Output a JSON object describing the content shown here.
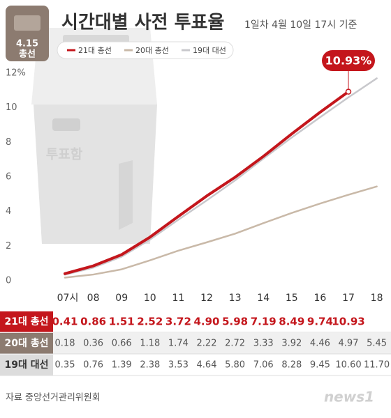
{
  "chart_data": {
    "type": "line",
    "title": "시간대별 사전 투표율",
    "subtitle": "1일차 4월 10일  17시 기준",
    "badge": [
      "4.15",
      "총선"
    ],
    "box_label": "투표함",
    "source": "자료 중앙선거관리위원회",
    "logo": "news1",
    "callout": "10.93%",
    "categories": [
      "07시",
      "08",
      "09",
      "10",
      "11",
      "12",
      "13",
      "14",
      "15",
      "16",
      "17",
      "18"
    ],
    "series": [
      {
        "name": "21대 총선",
        "color": "#c4161c",
        "values": [
          0.41,
          0.86,
          1.51,
          2.52,
          3.72,
          4.9,
          5.98,
          7.19,
          8.49,
          9.74,
          10.93,
          null
        ],
        "value_labels": [
          "0.41",
          "0.86",
          "1.51",
          "2.52",
          "3.72",
          "4.90",
          "5.98",
          "7.19",
          "8.49",
          "9.74",
          "10.93",
          null
        ]
      },
      {
        "name": "20대 총선",
        "color": "#c9b9a8",
        "values": [
          0.18,
          0.36,
          0.66,
          1.18,
          1.74,
          2.22,
          2.72,
          3.33,
          3.92,
          4.46,
          4.97,
          5.45
        ],
        "value_labels": [
          "0.18",
          "0.36",
          "0.66",
          "1.18",
          "1.74",
          "2.22",
          "2.72",
          "3.33",
          "3.92",
          "4.46",
          "4.97",
          "5.45"
        ]
      },
      {
        "name": "19대 대선",
        "color": "#c8c8cc",
        "values": [
          0.35,
          0.76,
          1.39,
          2.38,
          3.53,
          4.64,
          5.8,
          7.06,
          8.28,
          9.45,
          10.6,
          11.7
        ],
        "value_labels": [
          "0.35",
          "0.76",
          "1.39",
          "2.38",
          "3.53",
          "4.64",
          "5.80",
          "7.06",
          "8.28",
          "9.45",
          "10.60",
          "11.70"
        ]
      }
    ],
    "ylim": [
      0,
      12
    ],
    "yticks": [
      0,
      2,
      4,
      6,
      8,
      10,
      {
        "value": 12,
        "label": "12%"
      }
    ],
    "grid": false
  }
}
